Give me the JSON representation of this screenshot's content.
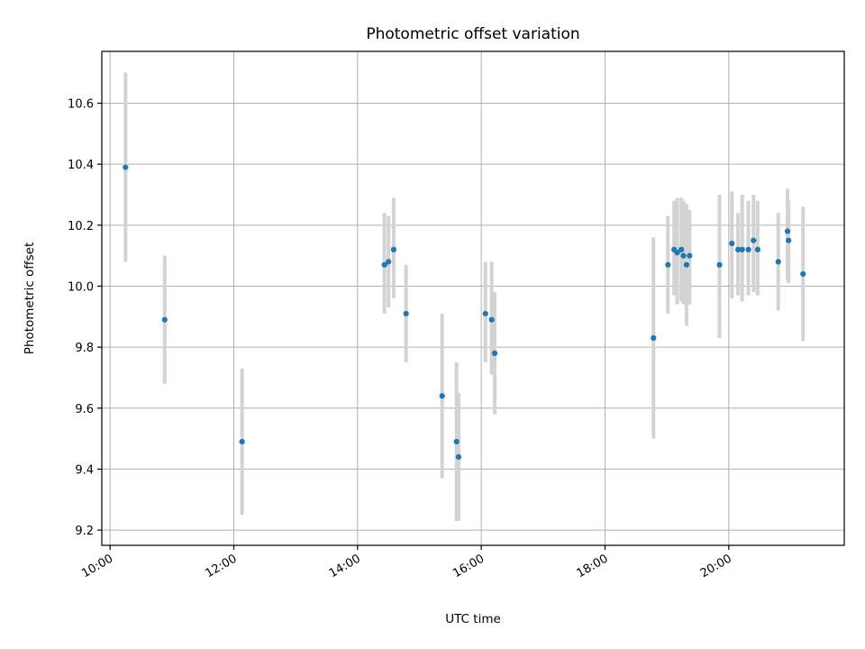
{
  "chart_data": {
    "type": "scatter",
    "title": "Photometric offset variation",
    "xlabel": "UTC time",
    "ylabel": "Photometric offset",
    "grid": true,
    "x_is_time": true,
    "xlim": [
      "09:52",
      "21:52"
    ],
    "ylim": [
      9.15,
      10.77
    ],
    "x_ticks": [
      "10:00",
      "12:00",
      "14:00",
      "16:00",
      "18:00",
      "20:00"
    ],
    "y_ticks": [
      9.2,
      9.4,
      9.6,
      9.8,
      10.0,
      10.2,
      10.4,
      10.6
    ],
    "y_tick_labels": [
      "9.2",
      "9.4",
      "9.6",
      "9.8",
      "10.0",
      "10.2",
      "10.4",
      "10.6"
    ],
    "colors": {
      "point": "#1f77b4",
      "errorbar": "#d3d3d3",
      "grid": "#b0b0b0"
    },
    "points": [
      {
        "x": "10:15",
        "y": 10.39,
        "ylow": 10.08,
        "yhigh": 10.7
      },
      {
        "x": "10:53",
        "y": 9.89,
        "ylow": 9.68,
        "yhigh": 10.1
      },
      {
        "x": "12:08",
        "y": 9.49,
        "ylow": 9.25,
        "yhigh": 9.73
      },
      {
        "x": "14:26",
        "y": 10.07,
        "ylow": 9.91,
        "yhigh": 10.24
      },
      {
        "x": "14:30",
        "y": 10.08,
        "ylow": 9.93,
        "yhigh": 10.23
      },
      {
        "x": "14:35",
        "y": 10.12,
        "ylow": 9.96,
        "yhigh": 10.29
      },
      {
        "x": "14:47",
        "y": 9.91,
        "ylow": 9.75,
        "yhigh": 10.07
      },
      {
        "x": "15:22",
        "y": 9.64,
        "ylow": 9.37,
        "yhigh": 9.91
      },
      {
        "x": "15:36",
        "y": 9.49,
        "ylow": 9.23,
        "yhigh": 9.75
      },
      {
        "x": "15:38",
        "y": 9.44,
        "ylow": 9.23,
        "yhigh": 9.65
      },
      {
        "x": "16:04",
        "y": 9.91,
        "ylow": 9.75,
        "yhigh": 10.08
      },
      {
        "x": "16:10",
        "y": 9.89,
        "ylow": 9.71,
        "yhigh": 10.08
      },
      {
        "x": "16:13",
        "y": 9.78,
        "ylow": 9.58,
        "yhigh": 9.98
      },
      {
        "x": "18:47",
        "y": 9.83,
        "ylow": 9.5,
        "yhigh": 10.16
      },
      {
        "x": "19:01",
        "y": 10.07,
        "ylow": 9.91,
        "yhigh": 10.23
      },
      {
        "x": "19:07",
        "y": 10.12,
        "ylow": 9.97,
        "yhigh": 10.28
      },
      {
        "x": "19:10",
        "y": 10.11,
        "ylow": 9.94,
        "yhigh": 10.29
      },
      {
        "x": "19:14",
        "y": 10.12,
        "ylow": 9.95,
        "yhigh": 10.29
      },
      {
        "x": "19:16",
        "y": 10.1,
        "ylow": 9.94,
        "yhigh": 10.28
      },
      {
        "x": "19:19",
        "y": 10.07,
        "ylow": 9.87,
        "yhigh": 10.27
      },
      {
        "x": "19:22",
        "y": 10.1,
        "ylow": 9.94,
        "yhigh": 10.25
      },
      {
        "x": "19:51",
        "y": 10.07,
        "ylow": 9.83,
        "yhigh": 10.3
      },
      {
        "x": "20:03",
        "y": 10.14,
        "ylow": 9.96,
        "yhigh": 10.31
      },
      {
        "x": "20:09",
        "y": 10.12,
        "ylow": 9.97,
        "yhigh": 10.24
      },
      {
        "x": "20:13",
        "y": 10.12,
        "ylow": 9.95,
        "yhigh": 10.3
      },
      {
        "x": "20:19",
        "y": 10.12,
        "ylow": 9.97,
        "yhigh": 10.28
      },
      {
        "x": "20:24",
        "y": 10.15,
        "ylow": 9.98,
        "yhigh": 10.3
      },
      {
        "x": "20:28",
        "y": 10.12,
        "ylow": 9.97,
        "yhigh": 10.28
      },
      {
        "x": "20:48",
        "y": 10.08,
        "ylow": 9.92,
        "yhigh": 10.24
      },
      {
        "x": "20:57",
        "y": 10.18,
        "ylow": 10.02,
        "yhigh": 10.32
      },
      {
        "x": "20:58",
        "y": 10.15,
        "ylow": 10.01,
        "yhigh": 10.28
      },
      {
        "x": "21:12",
        "y": 10.04,
        "ylow": 9.82,
        "yhigh": 10.26
      }
    ]
  }
}
